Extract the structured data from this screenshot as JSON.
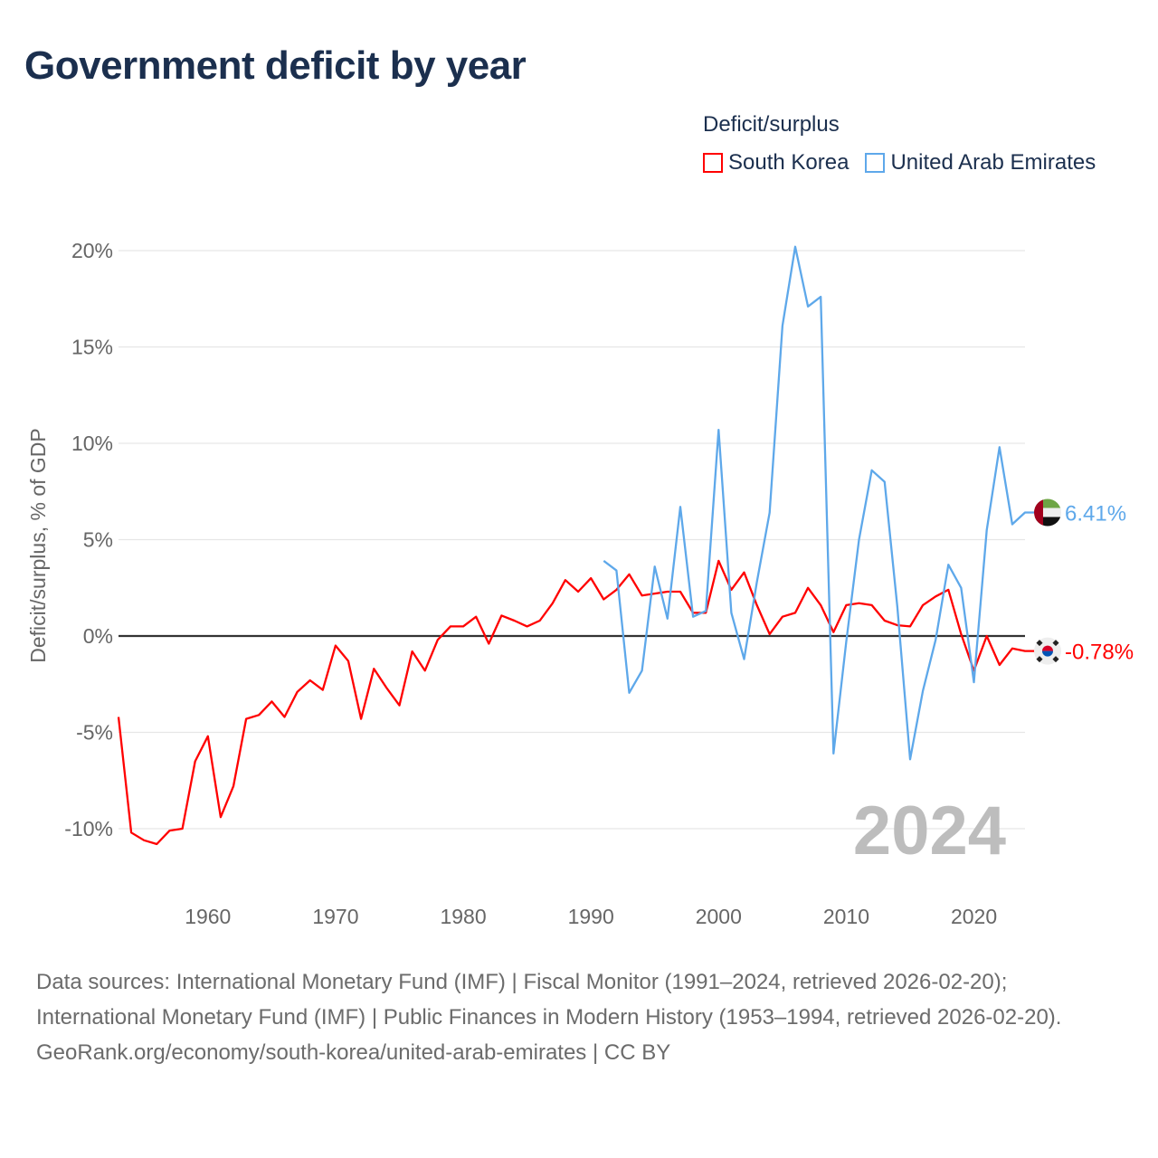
{
  "title": "Government deficit by year",
  "legend": {
    "title": "Deficit/surplus",
    "items": [
      {
        "label": "South Korea",
        "color": "#ff0000"
      },
      {
        "label": "United Arab Emirates",
        "color": "#5ea8ea"
      }
    ]
  },
  "chart_data": {
    "type": "line",
    "title": "Government deficit by year",
    "ylabel": "Deficit/surplus, % of GDP",
    "xlabel": "",
    "ylim": [
      -12,
      21
    ],
    "xlim": [
      1953,
      2024
    ],
    "yticks": [
      -10,
      -5,
      0,
      5,
      10,
      15,
      20
    ],
    "ytick_labels": [
      "-10%",
      "-5%",
      "0%",
      "5%",
      "10%",
      "15%",
      "20%"
    ],
    "xticks": [
      1960,
      1970,
      1980,
      1990,
      2000,
      2010,
      2020
    ],
    "xtick_labels": [
      "1960",
      "1970",
      "1980",
      "1990",
      "2000",
      "2010",
      "2020"
    ],
    "grid": true,
    "legend_position": "top-right",
    "year_watermark": "2024",
    "series": [
      {
        "name": "South Korea",
        "color": "#ff0000",
        "end_label": "-0.78%",
        "flag": "south-korea-flag",
        "x": [
          1953,
          1954,
          1955,
          1956,
          1957,
          1958,
          1959,
          1960,
          1961,
          1962,
          1963,
          1964,
          1965,
          1966,
          1967,
          1968,
          1969,
          1970,
          1971,
          1972,
          1973,
          1974,
          1975,
          1976,
          1977,
          1978,
          1979,
          1980,
          1981,
          1982,
          1983,
          1984,
          1985,
          1986,
          1987,
          1988,
          1989,
          1990,
          1991,
          1992,
          1993,
          1994,
          1995,
          1996,
          1997,
          1998,
          1999,
          2000,
          2001,
          2002,
          2003,
          2004,
          2005,
          2006,
          2007,
          2008,
          2009,
          2010,
          2011,
          2012,
          2013,
          2014,
          2015,
          2016,
          2017,
          2018,
          2019,
          2020,
          2021,
          2022,
          2023,
          2024
        ],
        "values": [
          -4.2,
          -10.2,
          -10.6,
          -10.8,
          -10.1,
          -10.0,
          -6.5,
          -5.2,
          -9.4,
          -7.8,
          -4.3,
          -4.1,
          -3.4,
          -4.2,
          -2.9,
          -2.3,
          -2.8,
          -0.5,
          -1.3,
          -4.3,
          -1.7,
          -2.7,
          -3.6,
          -0.8,
          -1.8,
          -0.2,
          0.5,
          0.5,
          1.0,
          -0.4,
          1.06,
          0.8,
          0.5,
          0.8,
          1.7,
          2.9,
          2.3,
          3.0,
          1.9,
          2.4,
          3.2,
          2.1,
          2.2,
          2.3,
          2.3,
          1.2,
          1.2,
          3.9,
          2.4,
          3.3,
          1.6,
          0.1,
          1.0,
          1.2,
          2.5,
          1.6,
          0.2,
          1.6,
          1.7,
          1.6,
          0.8,
          0.56,
          0.5,
          1.6,
          2.05,
          2.4,
          0.1,
          -1.8,
          0.0,
          -1.5,
          -0.65,
          -0.78
        ]
      },
      {
        "name": "United Arab Emirates",
        "color": "#5ea8ea",
        "end_label": "6.41%",
        "flag": "uae-flag",
        "x": [
          1991,
          1992,
          1993,
          1994,
          1995,
          1996,
          1997,
          1998,
          1999,
          2000,
          2001,
          2002,
          2003,
          2004,
          2005,
          2006,
          2007,
          2008,
          2009,
          2010,
          2011,
          2012,
          2013,
          2014,
          2015,
          2016,
          2017,
          2018,
          2019,
          2020,
          2021,
          2022,
          2023,
          2024
        ],
        "values": [
          3.9,
          3.4,
          -2.95,
          -1.8,
          3.6,
          0.9,
          6.7,
          1.0,
          1.3,
          10.7,
          1.2,
          -1.2,
          2.8,
          6.4,
          16.1,
          20.2,
          17.1,
          17.6,
          -6.1,
          -0.3,
          5.0,
          8.6,
          8.0,
          1.5,
          -6.4,
          -2.85,
          -0.2,
          3.7,
          2.5,
          -2.4,
          5.5,
          9.8,
          5.8,
          6.41
        ]
      }
    ]
  },
  "footer": {
    "sources": "Data sources: International Monetary Fund (IMF) | Fiscal Monitor (1991–2024, retrieved 2026-02-20); International Monetary Fund (IMF) | Public Finances in Modern History (1953–1994, retrieved 2026-02-20).",
    "link": "GeoRank.org/economy/south-korea/united-arab-emirates | CC BY"
  }
}
